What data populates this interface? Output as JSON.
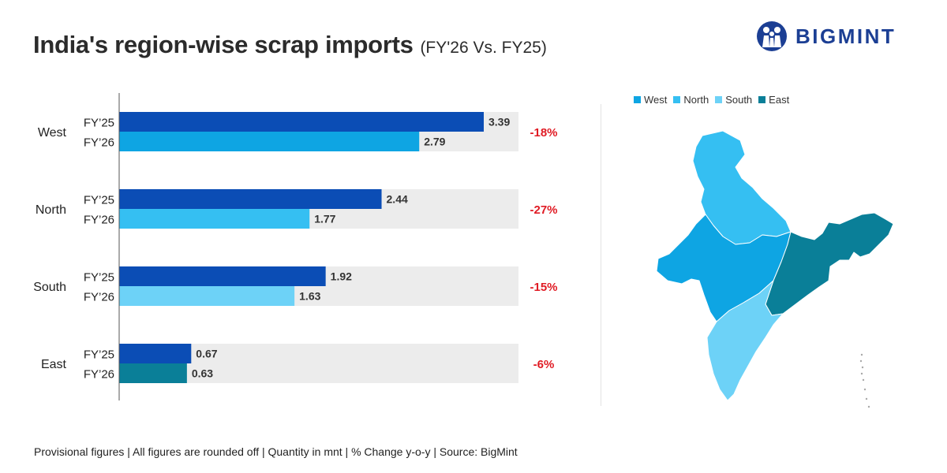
{
  "title": {
    "main": "India's region-wise scrap imports",
    "sub": "(FY'26 Vs. FY25)"
  },
  "brand": {
    "name": "BIGMINT",
    "logo_icon": "people-circle-icon",
    "color": "#1c3f94"
  },
  "chart_data": {
    "type": "bar",
    "orientation": "horizontal",
    "title": "India's region-wise scrap imports",
    "subtitle": "(FY'26 Vs. FY25)",
    "categories": [
      "West",
      "North",
      "South",
      "East"
    ],
    "series": [
      {
        "name": "FY’25",
        "values": [
          3.39,
          2.44,
          1.92,
          0.67
        ]
      },
      {
        "name": "FY’26",
        "values": [
          2.79,
          1.77,
          1.63,
          0.63
        ]
      }
    ],
    "value_labels": {
      "FY’25": [
        "3.39",
        "2.44",
        "1.92",
        "0.67"
      ],
      "FY’26": [
        "2.79",
        "1.77",
        "1.63",
        "0.63"
      ]
    },
    "yoy_change": [
      "-18%",
      "-27%",
      "-15%",
      "-6%"
    ],
    "xlim": [
      0,
      4
    ],
    "grid": false,
    "colors": {
      "fy25": "#0b4db5",
      "fy26": [
        "#0ea5e3",
        "#35bff2",
        "#6dd2f7",
        "#0a7f98"
      ],
      "track": "#ececec",
      "change": "#e01b24"
    }
  },
  "map": {
    "legend": [
      {
        "label": "West",
        "color": "#0ea5e3"
      },
      {
        "label": "North",
        "color": "#35bff2"
      },
      {
        "label": "South",
        "color": "#6dd2f7"
      },
      {
        "label": "East",
        "color": "#0a7f98"
      }
    ]
  },
  "footer": "Provisional figures | All figures are rounded off | Quantity in mnt | % Change y-o-y | Source: BigMint"
}
